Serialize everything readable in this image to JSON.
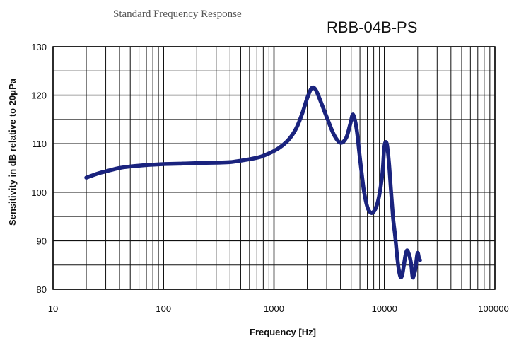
{
  "chart_data": {
    "type": "line",
    "title": "RBB-04B-PS",
    "subtitle": "Standard Frequency Response",
    "xlabel": "Frequency [Hz]",
    "ylabel": "Sensitivity in dB relative to 20μPa",
    "xscale": "log",
    "xlim": [
      10,
      100000
    ],
    "ylim": [
      80,
      130
    ],
    "grid": true,
    "x_ticks": [
      "10",
      "100",
      "1000",
      "10000",
      "100000"
    ],
    "y_ticks": [
      "80",
      "90",
      "100",
      "110",
      "120",
      "130"
    ],
    "series": [
      {
        "color": "#1a237e",
        "x": [
          20,
          25,
          30,
          40,
          50,
          70,
          100,
          150,
          200,
          300,
          400,
          500,
          600,
          700,
          800,
          1000,
          1200,
          1400,
          1600,
          1800,
          2000,
          2200,
          2400,
          2700,
          3000,
          3500,
          4000,
          4500,
          4900,
          5200,
          5600,
          6000,
          6500,
          7000,
          7500,
          8000,
          8500,
          9000,
          9600,
          10000,
          10500,
          11000,
          11500,
          12000,
          12500,
          13000,
          13500,
          14000,
          14500,
          15000,
          15500,
          16000,
          16500,
          17000,
          17500,
          18000,
          18500,
          19000,
          19500,
          20000,
          20500,
          21000
        ],
        "y": [
          103,
          103.8,
          104.3,
          105,
          105.3,
          105.6,
          105.8,
          105.9,
          106,
          106.1,
          106.2,
          106.5,
          106.8,
          107.1,
          107.5,
          108.5,
          109.7,
          111.2,
          113.3,
          116.2,
          119.4,
          121.5,
          121,
          118.2,
          115.5,
          111.8,
          110.2,
          111.2,
          114,
          116,
          113,
          107,
          100.5,
          97,
          95.8,
          96,
          97.2,
          99.5,
          104,
          109.5,
          110,
          106,
          100,
          94.5,
          91,
          87,
          84,
          82.5,
          83,
          85,
          87,
          88,
          87.5,
          86.5,
          85,
          82.5,
          83,
          84,
          86,
          87.5,
          86.5,
          86
        ]
      }
    ]
  }
}
